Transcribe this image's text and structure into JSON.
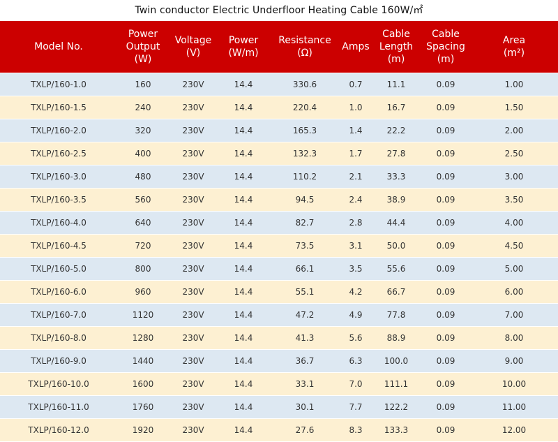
{
  "title": "Twin conductor Electric Underfloor Heating Cable 160W/㎡",
  "columns": [
    [
      "Model No."
    ],
    [
      "Power",
      "Output",
      "(W)"
    ],
    [
      "Voltage",
      "(V)"
    ],
    [
      "Power",
      "(W/m)"
    ],
    [
      "Resistance",
      "(Ω)"
    ],
    [
      "Amps"
    ],
    [
      "Cable",
      "Length",
      "(m)"
    ],
    [
      "Cable",
      "Spacing",
      "(m)"
    ],
    [
      "Area",
      "(m²)"
    ]
  ],
  "rows": [
    [
      "TXLP/160-1.0",
      "160",
      "230V",
      "14.4",
      "330.6",
      "0.7",
      "11.1",
      "0.09",
      "1.00"
    ],
    [
      "TXLP/160-1.5",
      "240",
      "230V",
      "14.4",
      "220.4",
      "1.0",
      "16.7",
      "0.09",
      "1.50"
    ],
    [
      "TXLP/160-2.0",
      "320",
      "230V",
      "14.4",
      "165.3",
      "1.4",
      "22.2",
      "0.09",
      "2.00"
    ],
    [
      "TXLP/160-2.5",
      "400",
      "230V",
      "14.4",
      "132.3",
      "1.7",
      "27.8",
      "0.09",
      "2.50"
    ],
    [
      "TXLP/160-3.0",
      "480",
      "230V",
      "14.4",
      "110.2",
      "2.1",
      "33.3",
      "0.09",
      "3.00"
    ],
    [
      "TXLP/160-3.5",
      "560",
      "230V",
      "14.4",
      "94.5",
      "2.4",
      "38.9",
      "0.09",
      "3.50"
    ],
    [
      "TXLP/160-4.0",
      "640",
      "230V",
      "14.4",
      "82.7",
      "2.8",
      "44.4",
      "0.09",
      "4.00"
    ],
    [
      "TXLP/160-4.5",
      "720",
      "230V",
      "14.4",
      "73.5",
      "3.1",
      "50.0",
      "0.09",
      "4.50"
    ],
    [
      "TXLP/160-5.0",
      "800",
      "230V",
      "14.4",
      "66.1",
      "3.5",
      "55.6",
      "0.09",
      "5.00"
    ],
    [
      "TXLP/160-6.0",
      "960",
      "230V",
      "14.4",
      "55.1",
      "4.2",
      "66.7",
      "0.09",
      "6.00"
    ],
    [
      "TXLP/160-7.0",
      "1120",
      "230V",
      "14.4",
      "47.2",
      "4.9",
      "77.8",
      "0.09",
      "7.00"
    ],
    [
      "TXLP/160-8.0",
      "1280",
      "230V",
      "14.4",
      "41.3",
      "5.6",
      "88.9",
      "0.09",
      "8.00"
    ],
    [
      "TXLP/160-9.0",
      "1440",
      "230V",
      "14.4",
      "36.7",
      "6.3",
      "100.0",
      "0.09",
      "9.00"
    ],
    [
      "TXLP/160-10.0",
      "1600",
      "230V",
      "14.4",
      "33.1",
      "7.0",
      "111.1",
      "0.09",
      "10.00"
    ],
    [
      "TXLP/160-11.0",
      "1760",
      "230V",
      "14.4",
      "30.1",
      "7.7",
      "122.2",
      "0.09",
      "11.00"
    ],
    [
      "TXLP/160-12.0",
      "1920",
      "230V",
      "14.4",
      "27.6",
      "8.3",
      "133.3",
      "0.09",
      "12.00"
    ]
  ],
  "colors": {
    "header_bg": "#cc0000",
    "header_text": "#ffffff",
    "row_odd_bg": "#dde8f2",
    "row_even_bg": "#fdf0d2"
  }
}
